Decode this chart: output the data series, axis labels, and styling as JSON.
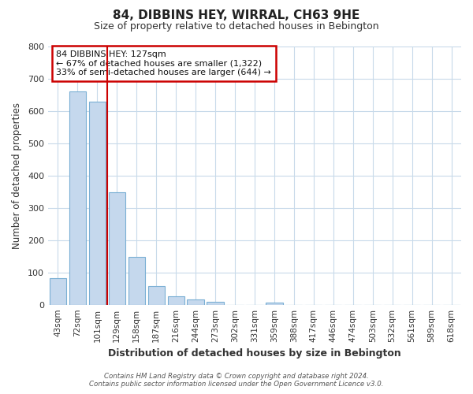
{
  "title": "84, DIBBINS HEY, WIRRAL, CH63 9HE",
  "subtitle": "Size of property relative to detached houses in Bebington",
  "xlabel": "Distribution of detached houses by size in Bebington",
  "ylabel": "Number of detached properties",
  "bar_labels": [
    "43sqm",
    "72sqm",
    "101sqm",
    "129sqm",
    "158sqm",
    "187sqm",
    "216sqm",
    "244sqm",
    "273sqm",
    "302sqm",
    "331sqm",
    "359sqm",
    "388sqm",
    "417sqm",
    "446sqm",
    "474sqm",
    "503sqm",
    "532sqm",
    "561sqm",
    "589sqm",
    "618sqm"
  ],
  "bar_values": [
    82,
    660,
    630,
    348,
    148,
    57,
    27,
    17,
    8,
    0,
    0,
    7,
    0,
    0,
    0,
    0,
    0,
    0,
    0,
    0,
    0
  ],
  "bar_color": "#c5d8ed",
  "bar_edge_color": "#7aafd4",
  "vline_color": "#cc0000",
  "annotation_title": "84 DIBBINS HEY: 127sqm",
  "annotation_line1": "← 67% of detached houses are smaller (1,322)",
  "annotation_line2": "33% of semi-detached houses are larger (644) →",
  "annotation_box_color": "#ffffff",
  "annotation_box_edge_color": "#cc0000",
  "ylim": [
    0,
    800
  ],
  "yticks": [
    0,
    100,
    200,
    300,
    400,
    500,
    600,
    700,
    800
  ],
  "footer_line1": "Contains HM Land Registry data © Crown copyright and database right 2024.",
  "footer_line2": "Contains public sector information licensed under the Open Government Licence v3.0.",
  "background_color": "#ffffff",
  "grid_color": "#c8daea"
}
